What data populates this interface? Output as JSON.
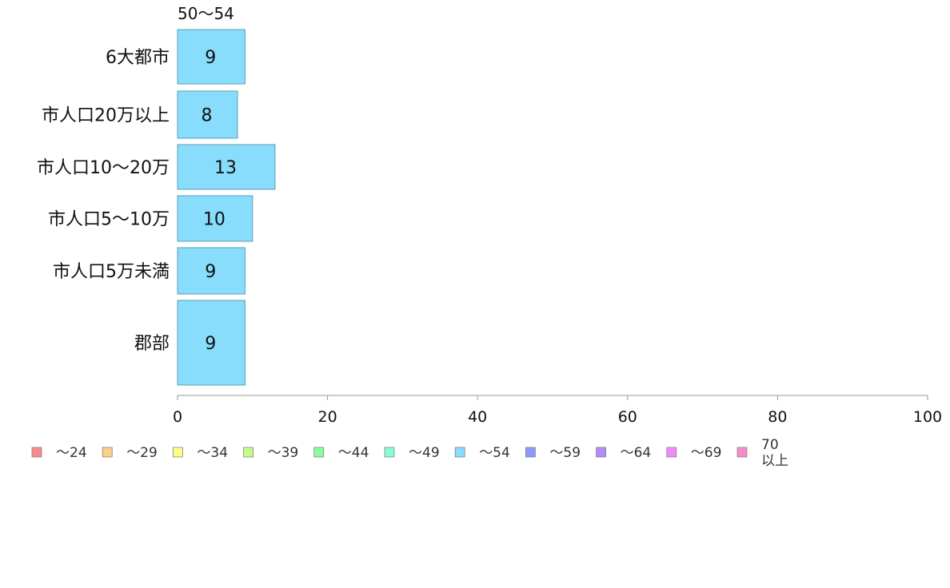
{
  "chart_data": {
    "type": "bar",
    "orientation": "horizontal",
    "series_header": "50〜54",
    "categories": [
      "6大都市",
      "市人口20万以上",
      "市人口10〜20万",
      "市人口5〜10万",
      "市人口5万未満",
      "郡部"
    ],
    "values": [
      9,
      8,
      13,
      10,
      9,
      9
    ],
    "bar_value_labels": [
      "9",
      "8",
      "13",
      "10",
      "9",
      "9"
    ],
    "xlim": [
      0,
      100
    ],
    "xticks": [
      0,
      20,
      40,
      60,
      80,
      100
    ],
    "xtick_labels": [
      "0",
      "20",
      "40",
      "60",
      "80",
      "100"
    ],
    "grid": false,
    "bar_color": "#88dcfc",
    "bar_stroke": "#5e9fb4",
    "legend_placement": "bottom",
    "legend": [
      {
        "label": "〜24",
        "color": "#fb8b8b"
      },
      {
        "label": "〜29",
        "color": "#fcce8b"
      },
      {
        "label": "〜34",
        "color": "#fcfc8b"
      },
      {
        "label": "〜39",
        "color": "#c2fc8b"
      },
      {
        "label": "〜44",
        "color": "#8bfc96"
      },
      {
        "label": "〜49",
        "color": "#8bfcd8"
      },
      {
        "label": "〜54",
        "color": "#88dcfc"
      },
      {
        "label": "〜59",
        "color": "#8b9afc"
      },
      {
        "label": "〜64",
        "color": "#b28bfc"
      },
      {
        "label": "〜69",
        "color": "#f08bfc"
      },
      {
        "label": "70\n以上",
        "color": "#fb8bc8"
      }
    ]
  }
}
